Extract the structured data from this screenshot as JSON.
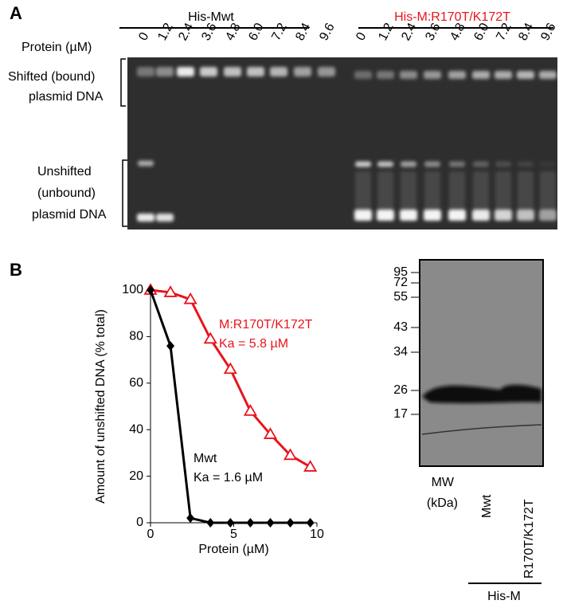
{
  "panel_a": {
    "label": "A",
    "group_1": "His-Mwt",
    "group_2": "His-M:R170T/K172T",
    "protein_label": "Protein (µM)",
    "lanes_1": [
      "0",
      "1.2",
      "2.4",
      "3.6",
      "4.8",
      "6.0",
      "7.2",
      "8.4",
      "9.6"
    ],
    "lanes_2": [
      "0",
      "1.2",
      "2.4",
      "3.6",
      "4.8",
      "6.0",
      "7.2",
      "8.4",
      "9.6"
    ],
    "shifted": [
      "Shifted (bound)",
      "plasmid DNA"
    ],
    "unshifted": [
      "Unshifted",
      "(unbound)",
      "plasmid DNA"
    ]
  },
  "chart_data": {
    "type": "line",
    "label": "B",
    "x_label": "Protein (µM)",
    "y_label": "Amount of unshifted DNA (% total)",
    "x": [
      0,
      1.2,
      2.4,
      3.6,
      4.8,
      6.0,
      7.2,
      8.4,
      9.6
    ],
    "series": [
      {
        "name": "M:R170T/K172T",
        "color": "#e8141c",
        "marker": "open-triangle",
        "values": [
          100,
          99,
          96,
          79,
          66,
          48,
          38,
          29,
          24
        ]
      },
      {
        "name": "Mwt",
        "color": "#000000",
        "marker": "diamond",
        "values": [
          100,
          76,
          2,
          0,
          0,
          0,
          0,
          0,
          0
        ]
      }
    ],
    "annotations": [
      "Ka = 5.8 µM",
      "Ka = 1.6 µM"
    ],
    "xlim": [
      0,
      10
    ],
    "xticks": [
      0,
      5,
      10
    ],
    "ylim": [
      0,
      100
    ],
    "yticks": [
      0,
      20,
      40,
      60,
      80,
      100
    ]
  },
  "blot": {
    "mw_markers": [
      95,
      72,
      55,
      43,
      34,
      26,
      17
    ],
    "mw_label": [
      "MW",
      "(kDa)"
    ],
    "lanes": [
      "Mwt",
      "R170T/K172T"
    ],
    "group": "His-M"
  }
}
